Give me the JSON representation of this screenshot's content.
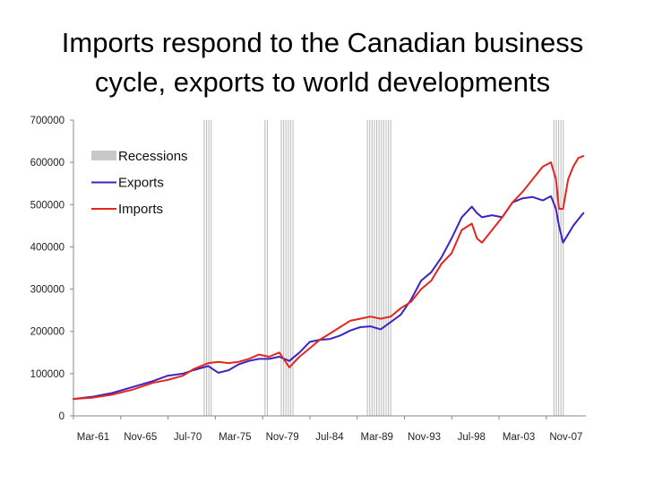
{
  "slide": {
    "title_line1": "Imports respond to the Canadian business",
    "title_line2": "cycle, exports to world developments"
  },
  "chart_data": {
    "type": "line",
    "title": "",
    "xlabel": "",
    "ylabel": "",
    "ylim": [
      0,
      700000
    ],
    "xlim": [
      "Mar-61",
      "Aug-11"
    ],
    "yticks": [
      "0",
      "100000",
      "200000",
      "300000",
      "400000",
      "500000",
      "600000",
      "700000"
    ],
    "xticks": [
      "Mar-61",
      "Nov-65",
      "Jul-70",
      "Mar-75",
      "Nov-79",
      "Jul-84",
      "Mar-89",
      "Nov-93",
      "Jul-98",
      "Mar-03",
      "Nov-07"
    ],
    "legend": {
      "placement": "top-left",
      "entries": [
        "Recessions",
        "Exports",
        "Imports"
      ]
    },
    "recessions": [
      {
        "start": 1974.1,
        "end": 1975.0
      },
      {
        "start": 1980.1,
        "end": 1980.5
      },
      {
        "start": 1981.7,
        "end": 1982.9
      },
      {
        "start": 1990.2,
        "end": 1992.6
      },
      {
        "start": 2008.6,
        "end": 2009.7
      }
    ],
    "series": [
      {
        "name": "Exports",
        "color": "#3d22c4",
        "x": [
          1961.2,
          1963,
          1965,
          1967,
          1969,
          1970.5,
          1972,
          1973,
          1974.5,
          1975.5,
          1976.5,
          1977.5,
          1978.5,
          1979.5,
          1980.5,
          1981.5,
          1982.5,
          1983.5,
          1984.5,
          1985.5,
          1986.5,
          1987.5,
          1988.5,
          1989.5,
          1990.5,
          1991.5,
          1992.5,
          1993.5,
          1994.5,
          1995.5,
          1996.5,
          1997.5,
          1998.5,
          1999.5,
          2000.5,
          2001,
          2001.5,
          2002.5,
          2003.5,
          2004.5,
          2005.5,
          2006.5,
          2007.5,
          2008.3,
          2008.8,
          2009.1,
          2009.5,
          2010,
          2010.5,
          2011,
          2011.5
        ],
        "values": [
          40000,
          45000,
          54000,
          68000,
          82000,
          95000,
          100000,
          108000,
          118000,
          102000,
          108000,
          122000,
          130000,
          135000,
          135000,
          140000,
          130000,
          150000,
          175000,
          180000,
          182000,
          190000,
          202000,
          210000,
          212000,
          205000,
          222000,
          240000,
          275000,
          320000,
          340000,
          375000,
          420000,
          470000,
          495000,
          480000,
          470000,
          475000,
          470000,
          505000,
          515000,
          518000,
          510000,
          520000,
          490000,
          450000,
          410000,
          430000,
          450000,
          465000,
          480000
        ]
      },
      {
        "name": "Imports",
        "color": "#e4261c",
        "x": [
          1961.2,
          1963,
          1965,
          1967,
          1969,
          1970.5,
          1972,
          1973,
          1974.5,
          1975.5,
          1976.5,
          1977.5,
          1978.5,
          1979.5,
          1980.5,
          1981.5,
          1982.5,
          1983.5,
          1984.5,
          1985.5,
          1986.5,
          1987.5,
          1988.5,
          1989.5,
          1990.5,
          1991.5,
          1992.5,
          1993.5,
          1994.5,
          1995.5,
          1996.5,
          1997.5,
          1998.5,
          1999.5,
          2000.5,
          2001,
          2001.5,
          2002.5,
          2003.5,
          2004.5,
          2005.5,
          2006.5,
          2007.5,
          2008.3,
          2008.8,
          2009.1,
          2009.5,
          2010,
          2010.5,
          2011,
          2011.5
        ],
        "values": [
          40000,
          43000,
          50000,
          62000,
          78000,
          85000,
          95000,
          110000,
          125000,
          128000,
          125000,
          128000,
          135000,
          145000,
          140000,
          150000,
          115000,
          140000,
          160000,
          180000,
          195000,
          210000,
          225000,
          230000,
          235000,
          230000,
          235000,
          255000,
          270000,
          300000,
          320000,
          360000,
          385000,
          440000,
          455000,
          420000,
          410000,
          440000,
          470000,
          505000,
          530000,
          560000,
          590000,
          600000,
          560000,
          490000,
          490000,
          560000,
          590000,
          610000,
          615000
        ]
      }
    ]
  }
}
